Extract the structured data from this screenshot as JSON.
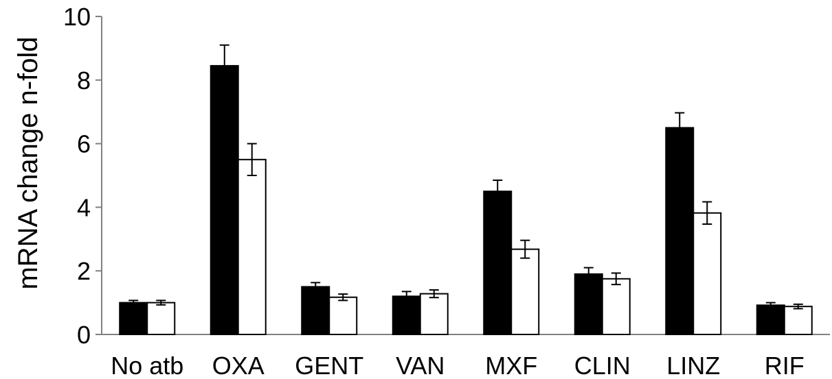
{
  "chart_data": {
    "type": "bar",
    "title": "",
    "xlabel": "",
    "ylabel": "mRNA change n-fold",
    "ylim": [
      0,
      10
    ],
    "yticks": [
      0,
      2,
      4,
      6,
      8,
      10
    ],
    "grid": false,
    "legend": "none",
    "categories": [
      "No atb",
      "OXA",
      "GENT",
      "VAN",
      "MXF",
      "CLIN",
      "LINZ",
      "RIF"
    ],
    "series": [
      {
        "color": "#000000",
        "values": [
          1.0,
          8.45,
          1.5,
          1.2,
          4.5,
          1.9,
          6.5,
          0.92
        ],
        "errors": [
          0.07,
          0.65,
          0.13,
          0.15,
          0.35,
          0.2,
          0.47,
          0.08
        ]
      },
      {
        "color": "#ffffff",
        "values": [
          1.0,
          5.5,
          1.17,
          1.28,
          2.68,
          1.75,
          3.82,
          0.88
        ],
        "errors": [
          0.07,
          0.5,
          0.1,
          0.12,
          0.28,
          0.18,
          0.35,
          0.07
        ]
      }
    ]
  }
}
